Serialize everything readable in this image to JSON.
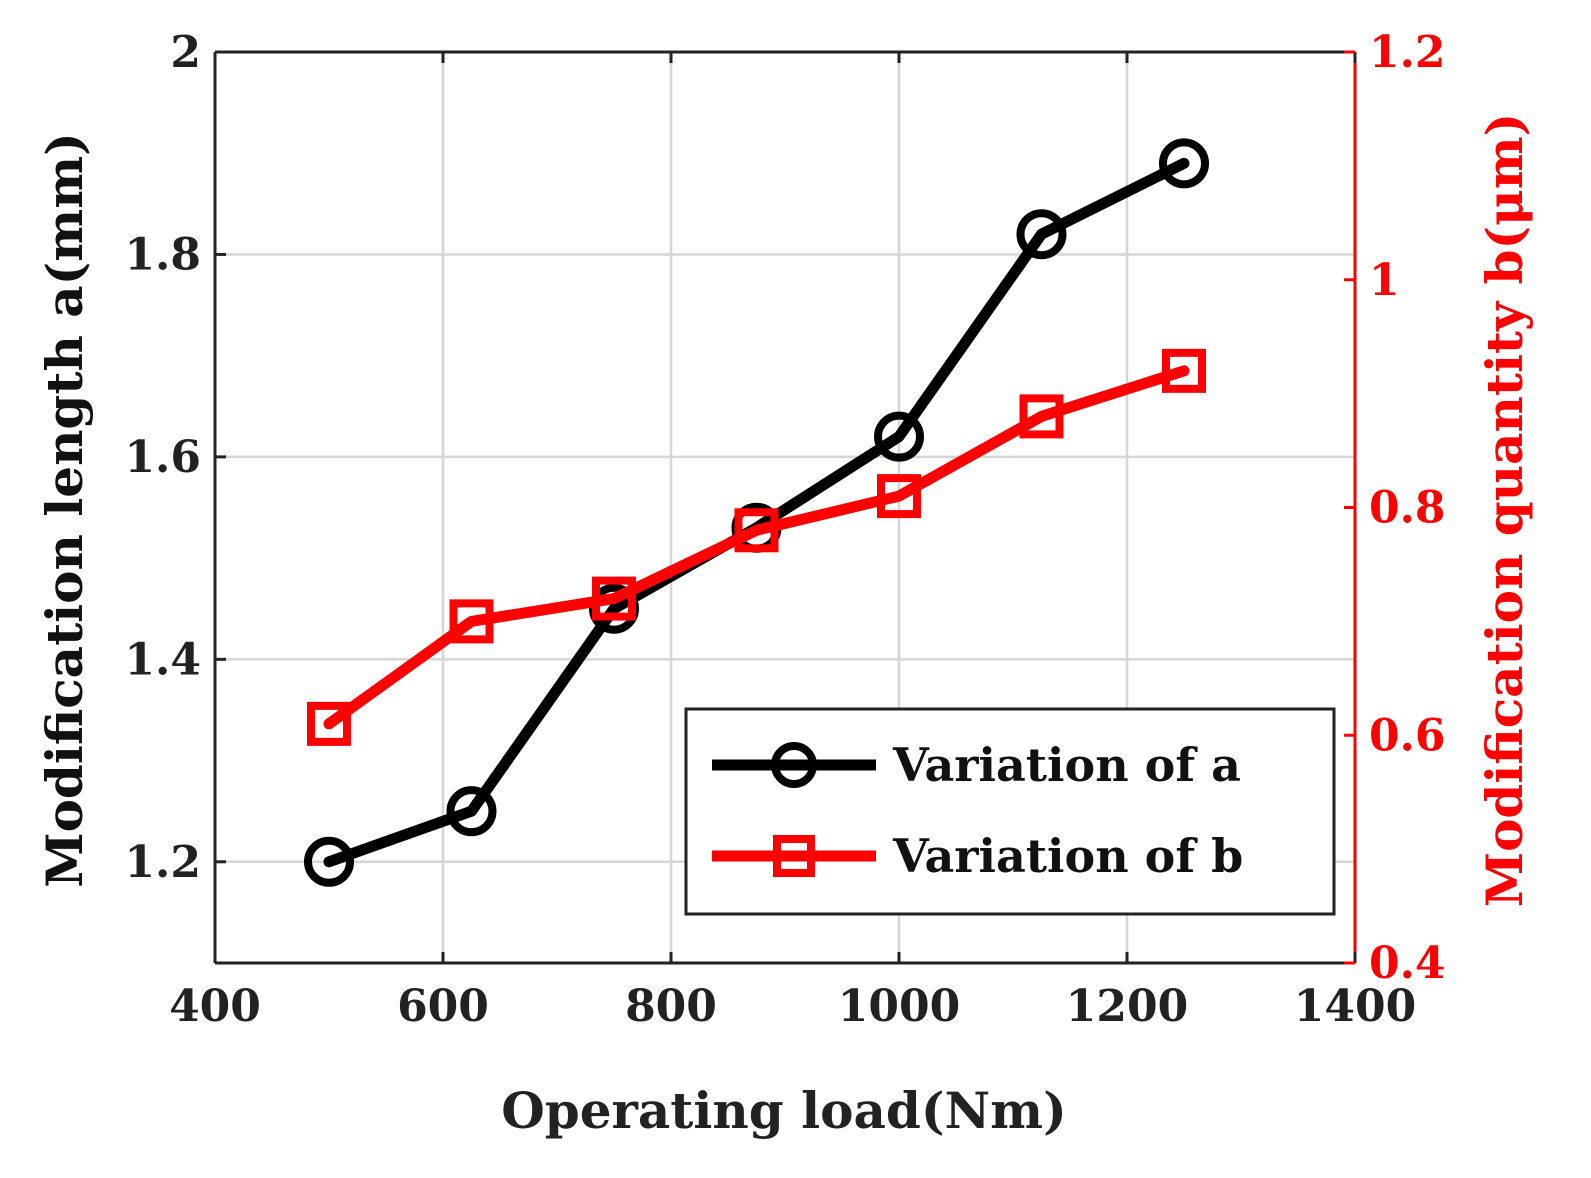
{
  "chart_data": {
    "type": "line",
    "xlabel": "Operating load(Nm)",
    "ylabel": "Modification length a(mm)",
    "y2label": "Modification quantity b(μm)",
    "xlim": [
      400,
      1400
    ],
    "ylim": [
      1.1,
      2.0
    ],
    "y2lim": [
      0.4,
      1.2
    ],
    "xticks": [
      "400",
      "600",
      "800",
      "1000",
      "1200",
      "1400"
    ],
    "xtick_values": [
      400,
      600,
      800,
      1000,
      1200,
      1400
    ],
    "yticks": [
      "1.2",
      "1.4",
      "1.6",
      "1.8",
      "2"
    ],
    "ytick_values": [
      1.2,
      1.4,
      1.6,
      1.8,
      2.0
    ],
    "y2ticks": [
      "0.4",
      "0.6",
      "0.8",
      "1",
      "1.2"
    ],
    "y2tick_values": [
      0.4,
      0.6,
      0.8,
      1.0,
      1.2
    ],
    "grid": true,
    "legend_position": "bottom-right",
    "series": [
      {
        "name": "Variation of a",
        "axis": "left",
        "color": "#000000",
        "marker": "circle",
        "x": [
          500,
          625,
          750,
          875,
          1000,
          1125,
          1250
        ],
        "values": [
          1.2,
          1.25,
          1.45,
          1.53,
          1.62,
          1.82,
          1.89
        ]
      },
      {
        "name": "Variation of b",
        "axis": "right",
        "color": "#ff0000",
        "marker": "square",
        "x": [
          500,
          625,
          750,
          875,
          1000,
          1125,
          1250
        ],
        "values": [
          0.61,
          0.7,
          0.72,
          0.78,
          0.81,
          0.88,
          0.92
        ]
      }
    ]
  }
}
